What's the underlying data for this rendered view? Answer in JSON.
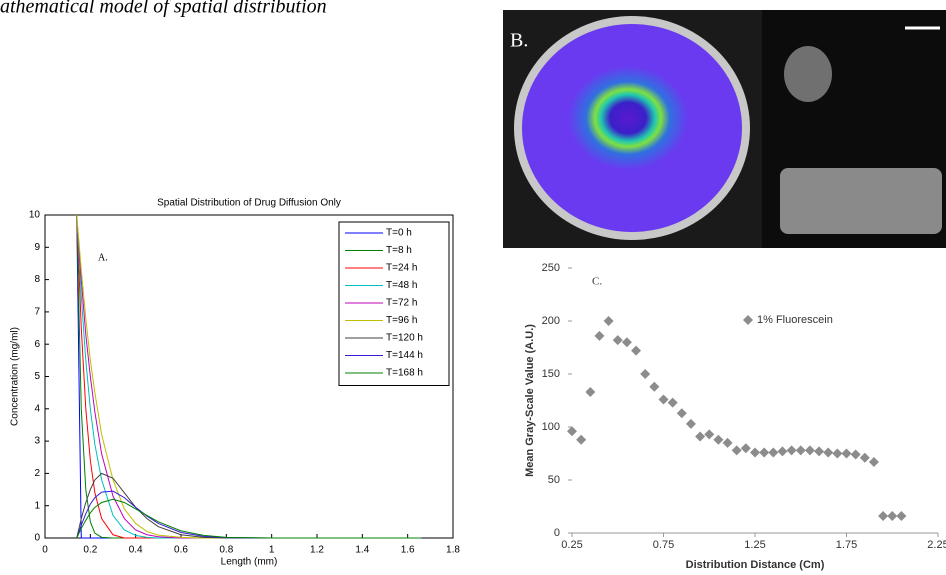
{
  "caption": "athematical model of spatial distribution",
  "panel_b": {
    "label": "B."
  },
  "chart_data": [
    {
      "type": "line",
      "title": "Spatial Distribution of Drug Diffusion Only",
      "annotation": "A.",
      "x_label": "Length (mm)",
      "y_label": "Concentration (mg/ml)",
      "x": [
        0.14,
        0.16,
        0.18,
        0.2,
        0.22,
        0.25,
        0.3,
        0.35,
        0.4,
        0.45,
        0.5,
        0.6,
        0.7,
        0.8,
        1.0,
        1.66
      ],
      "series": [
        {
          "name": "T=0 h",
          "color": "#0000ff",
          "values": [
            10,
            0,
            0,
            0,
            0,
            0,
            0,
            0,
            0,
            0,
            0,
            0,
            0,
            0,
            0,
            0
          ]
        },
        {
          "name": "T=8 h",
          "color": "#008000",
          "values": [
            10,
            4,
            1.5,
            0.5,
            0.15,
            0.02,
            0,
            0,
            0,
            0,
            0,
            0,
            0,
            0,
            0,
            0
          ]
        },
        {
          "name": "T=24 h",
          "color": "#ff0000",
          "values": [
            10,
            6.5,
            4,
            2.4,
            1.4,
            0.6,
            0.1,
            0,
            0,
            0,
            0,
            0,
            0,
            0,
            0,
            0
          ]
        },
        {
          "name": "T=48 h",
          "color": "#00bfbf",
          "values": [
            10,
            7.5,
            5.5,
            4,
            2.9,
            1.8,
            0.7,
            0.25,
            0.08,
            0.02,
            0,
            0,
            0,
            0,
            0,
            0
          ]
        },
        {
          "name": "T=72 h",
          "color": "#bf00bf",
          "values": [
            10,
            8,
            6.3,
            5,
            3.9,
            2.6,
            1.3,
            0.6,
            0.25,
            0.1,
            0.04,
            0,
            0,
            0,
            0,
            0
          ]
        },
        {
          "name": "T=96 h",
          "color": "#bfbf00",
          "values": [
            10,
            8.3,
            6.8,
            5.5,
            4.5,
            3.2,
            1.8,
            0.9,
            0.45,
            0.2,
            0.09,
            0.02,
            0,
            0,
            0,
            0
          ]
        },
        {
          "name": "T=120 h",
          "color": "#404040",
          "values": [
            0,
            0.6,
            1.1,
            1.5,
            1.8,
            2,
            1.85,
            1.4,
            0.95,
            0.6,
            0.35,
            0.1,
            0.02,
            0,
            0,
            0
          ]
        },
        {
          "name": "T=144 h",
          "color": "#3a1ad8",
          "values": [
            0,
            0.4,
            0.75,
            1.05,
            1.25,
            1.42,
            1.45,
            1.25,
            0.95,
            0.68,
            0.45,
            0.17,
            0.05,
            0.01,
            0,
            0
          ]
        },
        {
          "name": "T=168 h",
          "color": "#008000",
          "values": [
            0,
            0.3,
            0.55,
            0.78,
            0.95,
            1.1,
            1.2,
            1.1,
            0.9,
            0.7,
            0.5,
            0.22,
            0.08,
            0.02,
            0,
            0
          ]
        }
      ],
      "xlim": [
        0,
        1.8
      ],
      "xticks": [
        0,
        0.2,
        0.4,
        0.6,
        0.8,
        1,
        1.2,
        1.4,
        1.6,
        1.8
      ],
      "ylim": [
        0,
        10
      ],
      "yticks": [
        0,
        1,
        2,
        3,
        4,
        5,
        6,
        7,
        8,
        9,
        10
      ],
      "legend": "upper right",
      "grid": false
    },
    {
      "type": "scatter",
      "annotation": "C.",
      "x_label": "Distribution Distance (Cm)",
      "y_label": "Mean Gray-Scale Value (A.U.)",
      "series": [
        {
          "name": "1% Fluorescein",
          "color": "#8c8c8c",
          "x": [
            0.25,
            0.3,
            0.35,
            0.4,
            0.45,
            0.5,
            0.55,
            0.6,
            0.65,
            0.7,
            0.75,
            0.8,
            0.85,
            0.9,
            0.95,
            1.0,
            1.05,
            1.1,
            1.15,
            1.2,
            1.25,
            1.3,
            1.35,
            1.4,
            1.45,
            1.5,
            1.55,
            1.6,
            1.65,
            1.7,
            1.75,
            1.8,
            1.85,
            1.9,
            1.95,
            2.0,
            2.05
          ],
          "values": [
            96,
            88,
            133,
            186,
            200,
            182,
            180,
            172,
            150,
            138,
            126,
            123,
            113,
            103,
            91,
            93,
            88,
            85,
            78,
            80,
            76,
            76,
            76,
            77,
            78,
            78,
            78,
            77,
            76,
            75,
            75,
            74,
            71,
            67,
            16,
            16,
            16
          ]
        }
      ],
      "xlim": [
        0.25,
        2.25
      ],
      "xticks": [
        0.25,
        0.75,
        1.25,
        1.75,
        2.25
      ],
      "ylim": [
        0,
        250
      ],
      "yticks": [
        0,
        50,
        100,
        150,
        200,
        250
      ],
      "legend": "upper right",
      "grid": false
    }
  ]
}
